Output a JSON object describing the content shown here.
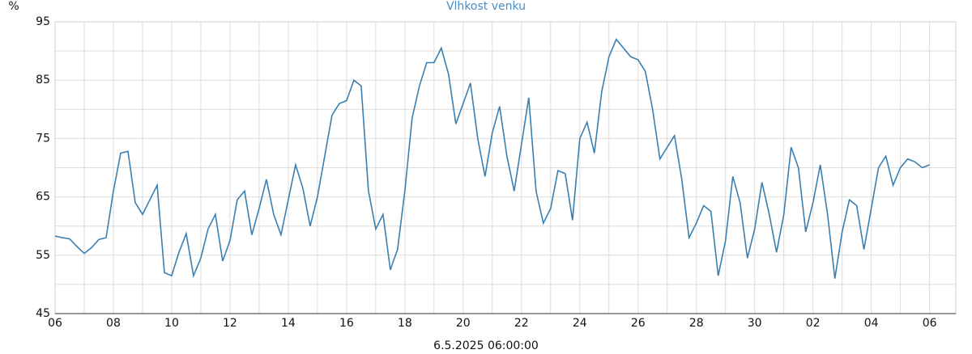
{
  "chart_data": {
    "type": "line",
    "title": "Vlhkost venku",
    "ylabel": "%",
    "xlabel": "6.5.2025 06:00:00",
    "color": "#3a7fb0",
    "grid": true,
    "xlim": [
      0,
      30.9
    ],
    "ylim": [
      45,
      95
    ],
    "yticks": [
      45,
      55,
      65,
      75,
      85,
      95
    ],
    "yminor": [
      50,
      60,
      70,
      80,
      90
    ],
    "xticks": [
      {
        "value": 0,
        "label": "06"
      },
      {
        "value": 2,
        "label": "08"
      },
      {
        "value": 4,
        "label": "10"
      },
      {
        "value": 6,
        "label": "12"
      },
      {
        "value": 8,
        "label": "14"
      },
      {
        "value": 10,
        "label": "16"
      },
      {
        "value": 12,
        "label": "18"
      },
      {
        "value": 14,
        "label": "20"
      },
      {
        "value": 16,
        "label": "22"
      },
      {
        "value": 18,
        "label": "24"
      },
      {
        "value": 20,
        "label": "26"
      },
      {
        "value": 22,
        "label": "28"
      },
      {
        "value": 24,
        "label": "30"
      },
      {
        "value": 26,
        "label": "02"
      },
      {
        "value": 28,
        "label": "04"
      },
      {
        "value": 30,
        "label": "06"
      }
    ],
    "xminor": [
      1,
      3,
      5,
      7,
      9,
      11,
      13,
      15,
      17,
      19,
      21,
      23,
      25,
      27,
      29
    ],
    "x": [
      0,
      0.25,
      0.5,
      0.75,
      1,
      1.25,
      1.5,
      1.75,
      2,
      2.25,
      2.5,
      2.75,
      3,
      3.25,
      3.5,
      3.75,
      4,
      4.25,
      4.5,
      4.75,
      5,
      5.25,
      5.5,
      5.75,
      6,
      6.25,
      6.5,
      6.75,
      7,
      7.25,
      7.5,
      7.75,
      8,
      8.25,
      8.5,
      8.75,
      9,
      9.25,
      9.5,
      9.75,
      10,
      10.25,
      10.5,
      10.75,
      11,
      11.25,
      11.5,
      11.75,
      12,
      12.25,
      12.5,
      12.75,
      13,
      13.25,
      13.5,
      13.75,
      14,
      14.25,
      14.5,
      14.75,
      15,
      15.25,
      15.5,
      15.75,
      16,
      16.25,
      16.5,
      16.75,
      17,
      17.25,
      17.5,
      17.75,
      18,
      18.25,
      18.5,
      18.75,
      19,
      19.25,
      19.5,
      19.75,
      20,
      20.25,
      20.5,
      20.75,
      21,
      21.25,
      21.5,
      21.75,
      22,
      22.25,
      22.5,
      22.75,
      23,
      23.25,
      23.5,
      23.75,
      24,
      24.25,
      24.5,
      24.75,
      25,
      25.25,
      25.5,
      25.75,
      26,
      26.25,
      26.5,
      26.75,
      27,
      27.25,
      27.5,
      27.75,
      28,
      28.25,
      28.5,
      28.75,
      29,
      29.25,
      29.5,
      29.75,
      30
    ],
    "values": [
      58.3,
      58,
      57.8,
      56.5,
      55.3,
      56.3,
      57.7,
      58,
      66,
      72.5,
      72.8,
      64,
      62,
      64.5,
      67,
      52,
      51.5,
      55.5,
      58.7,
      51.5,
      54.5,
      59.5,
      62,
      54,
      57.5,
      64.5,
      66,
      58.5,
      63,
      68,
      62,
      58.5,
      64.5,
      70.5,
      66.5,
      60,
      65,
      72,
      79,
      81,
      81.5,
      85,
      84,
      66,
      59.5,
      62,
      52.5,
      56,
      66,
      78.5,
      84,
      88,
      88,
      90.5,
      86,
      77.5,
      81,
      84.5,
      75,
      68.5,
      76,
      80.5,
      72,
      66,
      74,
      82,
      66,
      60.5,
      63,
      69.5,
      69,
      61,
      75,
      77.8,
      72.5,
      83,
      89,
      92,
      90.5,
      89,
      88.5,
      86.5,
      80,
      71.5,
      73.5,
      75.5,
      68,
      58,
      60.5,
      63.5,
      62.5,
      51.5,
      57.5,
      68.5,
      64,
      54.5,
      59.5,
      67.5,
      62,
      55.5,
      62,
      73.5,
      70,
      59,
      64,
      70.5,
      62,
      51,
      59,
      64.5,
      63.5,
      56,
      63,
      70,
      72,
      67,
      70,
      71.5,
      71,
      70,
      70.5
    ]
  }
}
